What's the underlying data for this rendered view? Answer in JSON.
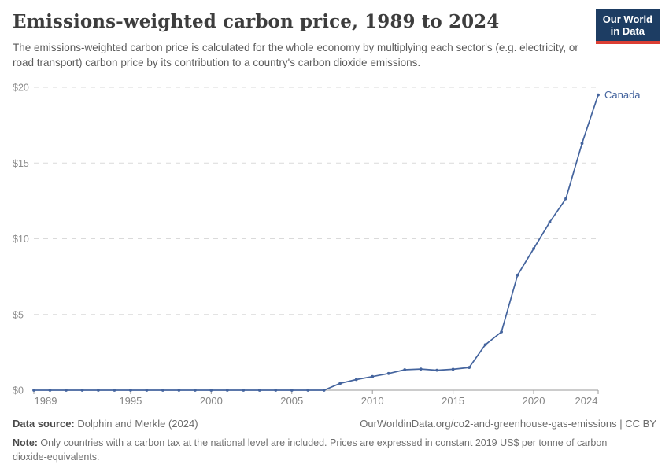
{
  "header": {
    "title": "Emissions-weighted carbon price, 1989 to 2024",
    "subtitle": "The emissions-weighted carbon price is calculated for the whole economy by multiplying each sector's (e.g. electricity, or road transport) carbon price by its contribution to a country's carbon dioxide emissions."
  },
  "logo": {
    "line1": "Our World",
    "line2": "in Data",
    "bg_color": "#1d3d63",
    "accent_color": "#dc3f34"
  },
  "chart_data": {
    "type": "line",
    "title": "Emissions-weighted carbon price, 1989 to 2024",
    "x": [
      1989,
      1990,
      1991,
      1992,
      1993,
      1994,
      1995,
      1996,
      1997,
      1998,
      1999,
      2000,
      2001,
      2002,
      2003,
      2004,
      2005,
      2006,
      2007,
      2008,
      2009,
      2010,
      2011,
      2012,
      2013,
      2014,
      2015,
      2016,
      2017,
      2018,
      2019,
      2020,
      2021,
      2022,
      2023,
      2024
    ],
    "series": [
      {
        "name": "Canada",
        "color": "#44649e",
        "values": [
          0,
          0,
          0,
          0,
          0,
          0,
          0,
          0,
          0,
          0,
          0,
          0,
          0,
          0,
          0,
          0,
          0,
          0,
          0,
          0.45,
          0.7,
          0.9,
          1.1,
          1.35,
          1.4,
          1.32,
          1.38,
          1.5,
          3.0,
          3.85,
          7.6,
          9.35,
          11.1,
          12.65,
          16.3,
          19.5
        ]
      }
    ],
    "xlabel": "",
    "ylabel": "",
    "xlim": [
      1989,
      2024
    ],
    "ylim": [
      0,
      20
    ],
    "yticks": [
      0,
      5,
      10,
      15,
      20
    ],
    "ytick_prefix": "$",
    "xticks": [
      1989,
      1995,
      2000,
      2005,
      2010,
      2015,
      2020,
      2024
    ],
    "grid": "dashed-horizontal",
    "legend_position": "end-of-line-label",
    "grid_color": "#dadada",
    "axis_color": "#9a9a9a",
    "tick_label_color": "#8c8c8c"
  },
  "footer": {
    "datasource_label": "Data source:",
    "datasource_value": " Dolphin and Merkle (2024)",
    "attribution": "OurWorldinData.org/co2-and-greenhouse-gas-emissions | CC BY",
    "note_label": "Note:",
    "note_value": " Only countries with a carbon tax at the national level are included. Prices are expressed in constant 2019 US$ per tonne of carbon dioxide-equivalents."
  }
}
